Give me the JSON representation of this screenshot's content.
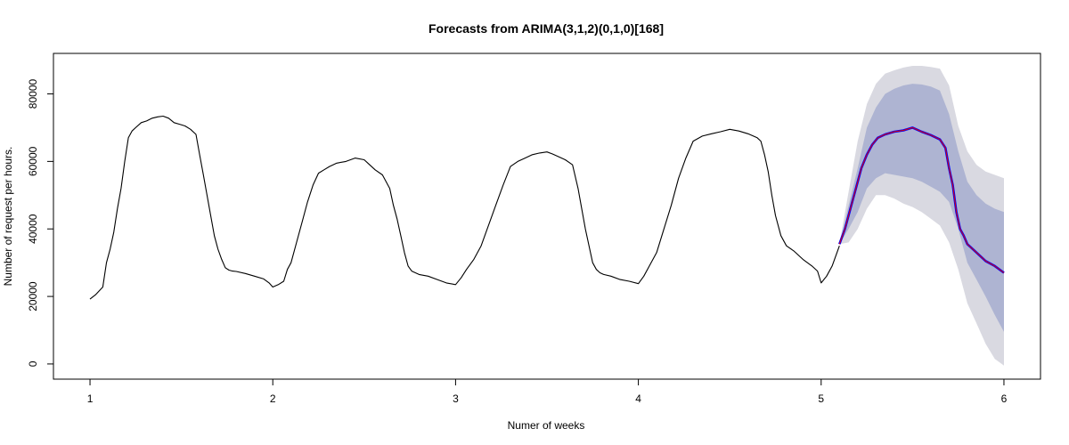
{
  "chart_data": {
    "type": "line",
    "title": "Forecasts from ARIMA(3,1,2)(0,1,0)[168]",
    "xlabel": "Numer of weeks",
    "ylabel": "Number of request per hours.",
    "xlim": [
      0.8,
      6.2
    ],
    "ylim": [
      -4500,
      92000
    ],
    "x_ticks": [
      1,
      2,
      3,
      4,
      5,
      6
    ],
    "y_ticks": [
      0,
      20000,
      40000,
      60000,
      80000
    ],
    "grid": false,
    "legend": "none",
    "colors": {
      "history": "#000000",
      "forecast": "#0000FF",
      "fitted": "#DD0000",
      "band95": "#D9D9E1",
      "band80": "#AEB4D2"
    },
    "series": [
      {
        "role": "history",
        "x": [
          1.0,
          1.03,
          1.07,
          1.09,
          1.11,
          1.13,
          1.15,
          1.17,
          1.19,
          1.21,
          1.23,
          1.25,
          1.28,
          1.31,
          1.34,
          1.37,
          1.4,
          1.43,
          1.46,
          1.49,
          1.52,
          1.55,
          1.58,
          1.6,
          1.62,
          1.64,
          1.66,
          1.68,
          1.7,
          1.72,
          1.74,
          1.76,
          1.78,
          1.8,
          1.85,
          1.9,
          1.95,
          1.98,
          2.0,
          2.03,
          2.06,
          2.08,
          2.1,
          2.13,
          2.16,
          2.19,
          2.22,
          2.25,
          2.28,
          2.31,
          2.35,
          2.4,
          2.45,
          2.5,
          2.53,
          2.56,
          2.6,
          2.64,
          2.66,
          2.68,
          2.7,
          2.72,
          2.74,
          2.76,
          2.78,
          2.8,
          2.85,
          2.9,
          2.95,
          3.0,
          3.03,
          3.06,
          3.1,
          3.14,
          3.18,
          3.22,
          3.26,
          3.3,
          3.34,
          3.38,
          3.42,
          3.46,
          3.5,
          3.53,
          3.56,
          3.6,
          3.64,
          3.67,
          3.69,
          3.71,
          3.73,
          3.75,
          3.77,
          3.79,
          3.81,
          3.85,
          3.9,
          3.95,
          4.0,
          4.03,
          4.06,
          4.1,
          4.14,
          4.18,
          4.22,
          4.26,
          4.3,
          4.35,
          4.4,
          4.45,
          4.5,
          4.55,
          4.6,
          4.65,
          4.67,
          4.69,
          4.71,
          4.73,
          4.75,
          4.78,
          4.81,
          4.85,
          4.9,
          4.95,
          4.98,
          5.0,
          5.03,
          5.06,
          5.1
        ],
        "y": [
          19200,
          20500,
          22800,
          30000,
          34000,
          39000,
          46000,
          52000,
          60000,
          67000,
          69000,
          70000,
          71500,
          72000,
          72800,
          73200,
          73400,
          72800,
          71500,
          71000,
          70500,
          69500,
          68000,
          62000,
          56000,
          50000,
          44000,
          38000,
          34000,
          31000,
          28500,
          27800,
          27500,
          27400,
          26800,
          26000,
          25200,
          24000,
          22800,
          23500,
          24500,
          28000,
          30000,
          36000,
          42000,
          48000,
          53000,
          56500,
          57500,
          58500,
          59500,
          60000,
          61000,
          60500,
          59000,
          57500,
          56000,
          52000,
          47000,
          43000,
          38000,
          33000,
          29000,
          27500,
          27000,
          26500,
          26000,
          25000,
          24000,
          23500,
          25500,
          28000,
          31000,
          35000,
          41000,
          47000,
          53000,
          58500,
          60000,
          61000,
          62000,
          62500,
          62800,
          62200,
          61500,
          60500,
          59000,
          52000,
          46000,
          40000,
          35000,
          30000,
          28000,
          27000,
          26500,
          26000,
          25000,
          24500,
          23800,
          26000,
          29000,
          33000,
          40000,
          47000,
          55000,
          61000,
          66000,
          67500,
          68200,
          68800,
          69500,
          69000,
          68200,
          67000,
          66000,
          62000,
          57000,
          50000,
          44000,
          38000,
          35000,
          33500,
          31000,
          29000,
          27500,
          24000,
          26000,
          29000,
          35000
        ]
      },
      {
        "role": "forecast",
        "x": [
          5.1,
          5.13,
          5.16,
          5.19,
          5.22,
          5.25,
          5.28,
          5.31,
          5.35,
          5.4,
          5.45,
          5.5,
          5.55,
          5.6,
          5.65,
          5.68,
          5.7,
          5.72,
          5.74,
          5.76,
          5.78,
          5.8,
          5.82,
          5.85,
          5.9,
          5.95,
          6.0
        ],
        "y": [
          35500,
          40000,
          46000,
          52000,
          58000,
          62000,
          65000,
          67000,
          68000,
          68800,
          69200,
          70000,
          68800,
          67800,
          66500,
          64000,
          58000,
          53000,
          45000,
          40000,
          38000,
          35500,
          34500,
          33000,
          30500,
          29000,
          27000
        ]
      },
      {
        "role": "band80",
        "x": [
          5.1,
          5.15,
          5.2,
          5.25,
          5.3,
          5.35,
          5.4,
          5.45,
          5.5,
          5.55,
          5.6,
          5.65,
          5.7,
          5.75,
          5.8,
          5.85,
          5.9,
          5.95,
          6.0
        ],
        "lower": [
          35500,
          40000,
          45000,
          52000,
          55000,
          56500,
          56000,
          55500,
          55000,
          54000,
          52500,
          51000,
          48000,
          40000,
          30000,
          25000,
          20000,
          14500,
          9500
        ],
        "upper": [
          35500,
          47000,
          58000,
          70000,
          76000,
          80000,
          81500,
          82500,
          83000,
          82800,
          82200,
          81000,
          74000,
          63000,
          54000,
          50000,
          47500,
          46000,
          45000
        ]
      },
      {
        "role": "band95",
        "x": [
          5.1,
          5.15,
          5.2,
          5.25,
          5.3,
          5.35,
          5.4,
          5.45,
          5.5,
          5.55,
          5.6,
          5.65,
          5.7,
          5.75,
          5.8,
          5.85,
          5.9,
          5.95,
          6.0
        ],
        "lower": [
          35500,
          36000,
          40000,
          46000,
          50000,
          50000,
          49000,
          47500,
          46500,
          45000,
          43000,
          41000,
          36000,
          28000,
          18000,
          12000,
          6000,
          1500,
          -500
        ],
        "upper": [
          35500,
          51000,
          66000,
          77000,
          83000,
          86000,
          87000,
          87800,
          88300,
          88300,
          88000,
          87500,
          82500,
          70500,
          63000,
          59000,
          57000,
          56000,
          55000
        ]
      }
    ]
  }
}
